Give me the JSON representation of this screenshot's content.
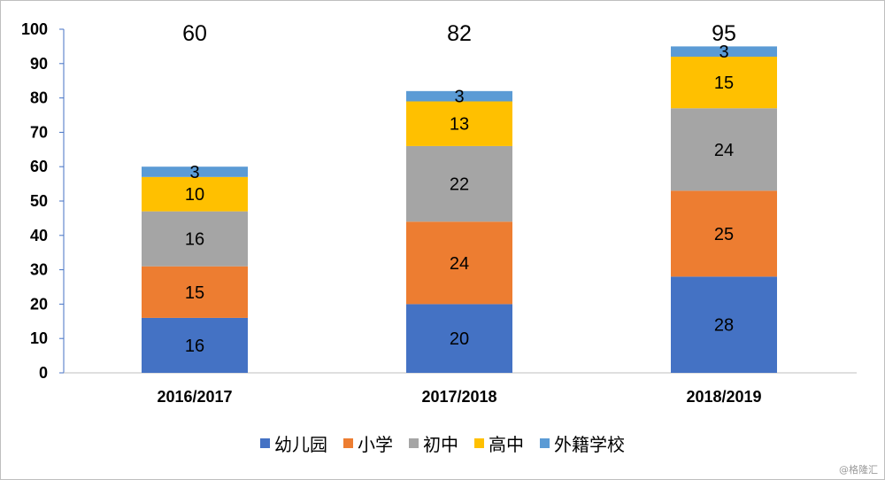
{
  "chart_data": {
    "type": "bar",
    "stacked": true,
    "categories": [
      "2016/2017",
      "2017/2018",
      "2018/2019"
    ],
    "series": [
      {
        "name": "幼儿园",
        "color": "#4472c4",
        "values": [
          16,
          20,
          28
        ]
      },
      {
        "name": "小学",
        "color": "#ed7d31",
        "values": [
          15,
          24,
          25
        ]
      },
      {
        "name": "初中",
        "color": "#a5a5a5",
        "values": [
          16,
          22,
          24
        ]
      },
      {
        "name": "高中",
        "color": "#ffc000",
        "values": [
          10,
          13,
          15
        ]
      },
      {
        "name": "外籍学校",
        "color": "#5b9bd5",
        "values": [
          3,
          3,
          3
        ]
      }
    ],
    "totals": [
      60,
      82,
      95
    ],
    "ylim": [
      0,
      100
    ],
    "yticks": [
      0,
      10,
      20,
      30,
      40,
      50,
      60,
      70,
      80,
      90,
      100
    ],
    "grid": false,
    "legend_position": "bottom"
  },
  "watermark": "@格隆汇"
}
